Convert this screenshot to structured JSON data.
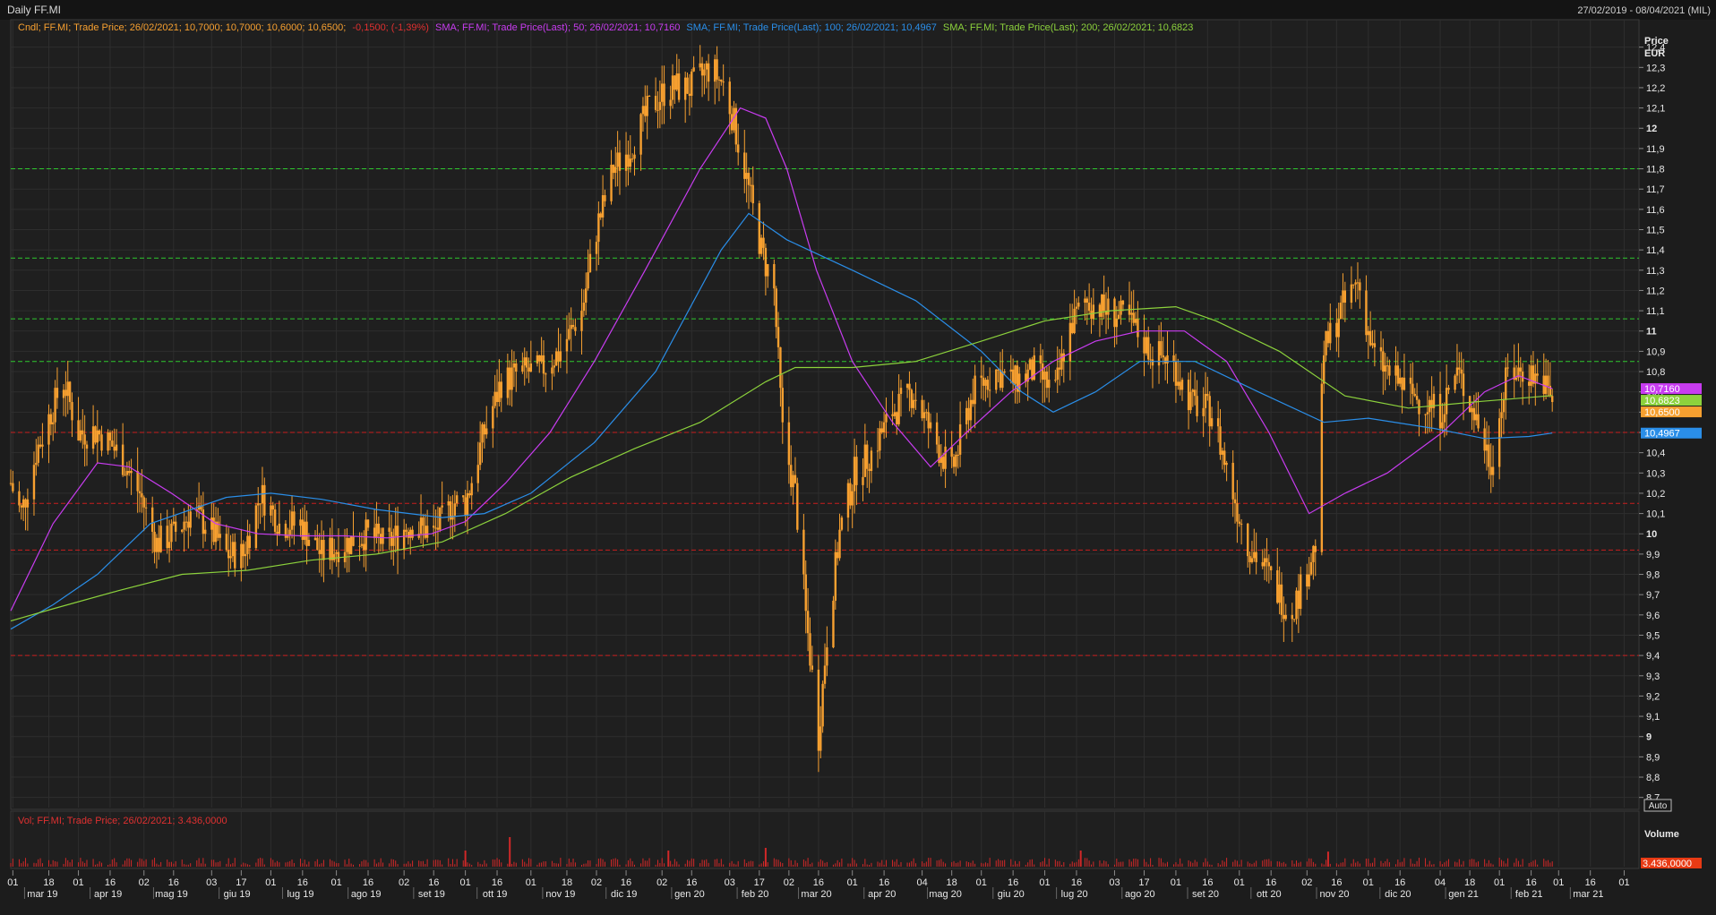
{
  "window": {
    "title": "Daily FF.MI",
    "date_range": "27/02/2019 - 08/04/2021 (MIL)"
  },
  "legend": {
    "candle": "Cndl; FF.MI; Trade Price; 26/02/2021; 10,7000; 10,7000; 10,6000; 10,6500;",
    "candle_change": "-0,1500; (-1,39%)",
    "sma50": "SMA; FF.MI; Trade Price(Last);  50;  26/02/2021; 10,7160",
    "sma100": "SMA; FF.MI; Trade Price(Last);  100;  26/02/2021; 10,4967",
    "sma200": "SMA; FF.MI; Trade Price(Last);  200;  26/02/2021; 10,6823"
  },
  "axis": {
    "price_title": "Price",
    "price_unit": "EUR",
    "auto_label": "Auto",
    "volume_title": "Volume"
  },
  "volume_legend": "Vol; FF.MI; Trade Price;  26/02/2021; 3.436,0000",
  "colors": {
    "background": "#1c1c1c",
    "candle": "#f7a030",
    "sma50": "#c83cf0",
    "sma100": "#2a8ee8",
    "sma200": "#8cd23c",
    "green_levels": "#2ec82e",
    "red_levels": "#c81e1e",
    "volume": "#d22828",
    "axis_text": "#cfcfcf"
  },
  "chart_data": {
    "type": "candlestick",
    "y_range": [
      8.65,
      12.5
    ],
    "y_ticks": [
      "8,7",
      "8,8",
      "8,9",
      "9",
      "9,1",
      "9,2",
      "9,3",
      "9,4",
      "9,5",
      "9,6",
      "9,7",
      "9,8",
      "9,9",
      "10",
      "10,1",
      "10,2",
      "10,3",
      "10,4",
      "10,5",
      "10,6",
      "10,7",
      "10,8",
      "10,9",
      "11",
      "11,1",
      "11,2",
      "11,3",
      "11,4",
      "11,5",
      "11,6",
      "11,7",
      "11,8",
      "11,9",
      "12",
      "12,1",
      "12,2",
      "12,3",
      "12,4"
    ],
    "major_ticks": [
      "9",
      "10",
      "11",
      "12"
    ],
    "x_dates": [
      "2019-03-01",
      "2019-03-18",
      "2019-04-01",
      "2019-04-16",
      "2019-05-02",
      "2019-05-16",
      "2019-06-03",
      "2019-06-17",
      "2019-07-01",
      "2019-07-16",
      "2019-08-01",
      "2019-08-16",
      "2019-09-02",
      "2019-09-16",
      "2019-10-01",
      "2019-10-16",
      "2019-11-01",
      "2019-11-18",
      "2019-12-02",
      "2019-12-16",
      "2020-01-02",
      "2020-01-16",
      "2020-02-03",
      "2020-02-17",
      "2020-03-02",
      "2020-03-16",
      "2020-04-01",
      "2020-04-16",
      "2020-05-04",
      "2020-05-18",
      "2020-06-01",
      "2020-06-16",
      "2020-07-01",
      "2020-07-16",
      "2020-08-03",
      "2020-08-17",
      "2020-09-01",
      "2020-09-16",
      "2020-10-01",
      "2020-10-16",
      "2020-11-02",
      "2020-11-16",
      "2020-12-01",
      "2020-12-16",
      "2021-01-04",
      "2021-01-18",
      "2021-02-01",
      "2021-02-16",
      "2021-03-01",
      "2021-03-16",
      "2021-04-01"
    ],
    "x_tick_labels": [
      "01",
      "18",
      "01",
      "16",
      "02",
      "16",
      "03",
      "17",
      "01",
      "16",
      "01",
      "16",
      "02",
      "16",
      "01",
      "16",
      "01",
      "18",
      "02",
      "16",
      "02",
      "16",
      "03",
      "17",
      "02",
      "16",
      "01",
      "16",
      "04",
      "18",
      "01",
      "16",
      "01",
      "16",
      "03",
      "17",
      "01",
      "16",
      "01",
      "16",
      "02",
      "16",
      "01",
      "16",
      "04",
      "18",
      "01",
      "16",
      "01",
      "16",
      "01"
    ],
    "month_labels": [
      {
        "label": "mar 19",
        "date": "2019-03-15"
      },
      {
        "label": "apr 19",
        "date": "2019-04-15"
      },
      {
        "label": "mag 19",
        "date": "2019-05-15"
      },
      {
        "label": "giu 19",
        "date": "2019-06-15"
      },
      {
        "label": "lug 19",
        "date": "2019-07-15"
      },
      {
        "label": "ago 19",
        "date": "2019-08-15"
      },
      {
        "label": "set 19",
        "date": "2019-09-15"
      },
      {
        "label": "ott 19",
        "date": "2019-10-15"
      },
      {
        "label": "nov 19",
        "date": "2019-11-15"
      },
      {
        "label": "dic 19",
        "date": "2019-12-15"
      },
      {
        "label": "gen 20",
        "date": "2020-01-15"
      },
      {
        "label": "feb 20",
        "date": "2020-02-15"
      },
      {
        "label": "mar 20",
        "date": "2020-03-15"
      },
      {
        "label": "apr 20",
        "date": "2020-04-15"
      },
      {
        "label": "mag 20",
        "date": "2020-05-15"
      },
      {
        "label": "giu 20",
        "date": "2020-06-15"
      },
      {
        "label": "lug 20",
        "date": "2020-07-15"
      },
      {
        "label": "ago 20",
        "date": "2020-08-15"
      },
      {
        "label": "set 20",
        "date": "2020-09-15"
      },
      {
        "label": "ott 20",
        "date": "2020-10-15"
      },
      {
        "label": "nov 20",
        "date": "2020-11-15"
      },
      {
        "label": "dic 20",
        "date": "2020-12-15"
      },
      {
        "label": "gen 21",
        "date": "2021-01-15"
      },
      {
        "label": "feb 21",
        "date": "2021-02-15"
      },
      {
        "label": "mar 21",
        "date": "2021-03-15"
      }
    ],
    "x_range": [
      "2019-02-28",
      "2021-04-08"
    ],
    "green_levels": [
      11.8,
      11.36,
      11.06,
      10.85
    ],
    "red_levels": [
      10.5,
      10.15,
      9.92,
      9.4
    ],
    "close_series": [
      [
        "2019-02-28",
        10.25
      ],
      [
        "2019-03-05",
        10.1
      ],
      [
        "2019-03-12",
        10.4
      ],
      [
        "2019-03-19",
        10.6
      ],
      [
        "2019-03-25",
        10.75
      ],
      [
        "2019-04-01",
        10.5
      ],
      [
        "2019-04-10",
        10.5
      ],
      [
        "2019-04-20",
        10.4
      ],
      [
        "2019-04-30",
        10.2
      ],
      [
        "2019-05-08",
        9.95
      ],
      [
        "2019-05-16",
        10.0
      ],
      [
        "2019-05-24",
        10.1
      ],
      [
        "2019-06-01",
        10.05
      ],
      [
        "2019-06-10",
        9.9
      ],
      [
        "2019-06-18",
        9.9
      ],
      [
        "2019-06-26",
        10.2
      ],
      [
        "2019-07-05",
        10.05
      ],
      [
        "2019-07-15",
        10.05
      ],
      [
        "2019-07-25",
        9.9
      ],
      [
        "2019-08-05",
        9.95
      ],
      [
        "2019-08-15",
        10.0
      ],
      [
        "2019-08-25",
        9.95
      ],
      [
        "2019-09-05",
        10.05
      ],
      [
        "2019-09-16",
        10.0
      ],
      [
        "2019-09-25",
        10.15
      ],
      [
        "2019-10-01",
        10.15
      ],
      [
        "2019-10-10",
        10.5
      ],
      [
        "2019-10-18",
        10.75
      ],
      [
        "2019-10-28",
        10.8
      ],
      [
        "2019-11-05",
        10.8
      ],
      [
        "2019-11-15",
        10.9
      ],
      [
        "2019-11-25",
        11.1
      ],
      [
        "2019-12-02",
        11.5
      ],
      [
        "2019-12-10",
        11.8
      ],
      [
        "2019-12-18",
        11.9
      ],
      [
        "2019-12-27",
        12.1
      ],
      [
        "2020-01-05",
        12.2
      ],
      [
        "2020-01-15",
        12.2
      ],
      [
        "2020-01-25",
        12.3
      ],
      [
        "2020-02-01",
        12.2
      ],
      [
        "2020-02-10",
        11.8
      ],
      [
        "2020-02-18",
        11.4
      ],
      [
        "2020-02-24",
        11.2
      ],
      [
        "2020-02-28",
        10.5
      ],
      [
        "2020-03-05",
        10.2
      ],
      [
        "2020-03-10",
        9.6
      ],
      [
        "2020-03-16",
        9.0
      ],
      [
        "2020-03-20",
        9.5
      ],
      [
        "2020-03-26",
        10.0
      ],
      [
        "2020-04-02",
        10.3
      ],
      [
        "2020-04-10",
        10.4
      ],
      [
        "2020-04-20",
        10.6
      ],
      [
        "2020-04-30",
        10.7
      ],
      [
        "2020-05-08",
        10.5
      ],
      [
        "2020-05-18",
        10.3
      ],
      [
        "2020-05-28",
        10.7
      ],
      [
        "2020-06-08",
        10.8
      ],
      [
        "2020-06-16",
        10.75
      ],
      [
        "2020-06-26",
        10.8
      ],
      [
        "2020-07-06",
        10.7
      ],
      [
        "2020-07-12",
        11.0
      ],
      [
        "2020-07-20",
        11.15
      ],
      [
        "2020-07-30",
        11.1
      ],
      [
        "2020-08-10",
        11.05
      ],
      [
        "2020-08-20",
        10.9
      ],
      [
        "2020-08-30",
        10.85
      ],
      [
        "2020-09-08",
        10.65
      ],
      [
        "2020-09-18",
        10.6
      ],
      [
        "2020-09-28",
        10.2
      ],
      [
        "2020-10-05",
        9.95
      ],
      [
        "2020-10-15",
        9.8
      ],
      [
        "2020-10-25",
        9.6
      ],
      [
        "2020-10-31",
        9.75
      ],
      [
        "2020-11-06",
        9.95
      ],
      [
        "2020-11-10",
        10.9
      ],
      [
        "2020-11-18",
        11.1
      ],
      [
        "2020-11-26",
        11.25
      ],
      [
        "2020-12-03",
        10.9
      ],
      [
        "2020-12-10",
        10.8
      ],
      [
        "2020-12-20",
        10.7
      ],
      [
        "2021-01-04",
        10.6
      ],
      [
        "2021-01-12",
        10.8
      ],
      [
        "2021-01-20",
        10.6
      ],
      [
        "2021-01-28",
        10.35
      ],
      [
        "2021-02-05",
        10.8
      ],
      [
        "2021-02-15",
        10.8
      ],
      [
        "2021-02-22",
        10.75
      ],
      [
        "2021-02-26",
        10.65
      ]
    ],
    "series": [
      {
        "name": "SMA 50",
        "last": 10.716,
        "label": "10,7160",
        "points": [
          [
            "2019-02-28",
            9.62
          ],
          [
            "2019-03-20",
            10.05
          ],
          [
            "2019-04-10",
            10.35
          ],
          [
            "2019-04-25",
            10.33
          ],
          [
            "2019-05-15",
            10.2
          ],
          [
            "2019-06-05",
            10.05
          ],
          [
            "2019-06-25",
            10.0
          ],
          [
            "2019-07-15",
            9.99
          ],
          [
            "2019-08-05",
            9.99
          ],
          [
            "2019-08-25",
            9.98
          ],
          [
            "2019-09-15",
            10.0
          ],
          [
            "2019-10-01",
            10.06
          ],
          [
            "2019-10-20",
            10.25
          ],
          [
            "2019-11-10",
            10.5
          ],
          [
            "2019-12-01",
            10.85
          ],
          [
            "2019-12-25",
            11.3
          ],
          [
            "2020-01-20",
            11.8
          ],
          [
            "2020-02-08",
            12.1
          ],
          [
            "2020-02-20",
            12.05
          ],
          [
            "2020-03-01",
            11.8
          ],
          [
            "2020-03-15",
            11.3
          ],
          [
            "2020-04-01",
            10.85
          ],
          [
            "2020-04-20",
            10.55
          ],
          [
            "2020-05-08",
            10.33
          ],
          [
            "2020-05-25",
            10.5
          ],
          [
            "2020-06-15",
            10.7
          ],
          [
            "2020-07-05",
            10.85
          ],
          [
            "2020-07-25",
            10.95
          ],
          [
            "2020-08-15",
            11.0
          ],
          [
            "2020-09-05",
            11.0
          ],
          [
            "2020-09-25",
            10.85
          ],
          [
            "2020-10-15",
            10.5
          ],
          [
            "2020-11-03",
            10.1
          ],
          [
            "2020-11-20",
            10.2
          ],
          [
            "2020-12-10",
            10.3
          ],
          [
            "2021-01-05",
            10.5
          ],
          [
            "2021-01-25",
            10.7
          ],
          [
            "2021-02-10",
            10.78
          ],
          [
            "2021-02-26",
            10.716
          ]
        ]
      },
      {
        "name": "SMA 100",
        "last": 10.4967,
        "label": "10,4967",
        "points": [
          [
            "2019-02-28",
            9.53
          ],
          [
            "2019-03-20",
            9.65
          ],
          [
            "2019-04-10",
            9.8
          ],
          [
            "2019-05-05",
            10.05
          ],
          [
            "2019-06-10",
            10.18
          ],
          [
            "2019-07-01",
            10.2
          ],
          [
            "2019-07-25",
            10.17
          ],
          [
            "2019-08-20",
            10.12
          ],
          [
            "2019-09-20",
            10.08
          ],
          [
            "2019-10-10",
            10.1
          ],
          [
            "2019-11-01",
            10.2
          ],
          [
            "2019-12-01",
            10.45
          ],
          [
            "2019-12-30",
            10.8
          ],
          [
            "2020-01-30",
            11.4
          ],
          [
            "2020-02-12",
            11.58
          ],
          [
            "2020-03-01",
            11.45
          ],
          [
            "2020-04-01",
            11.3
          ],
          [
            "2020-05-01",
            11.15
          ],
          [
            "2020-06-01",
            10.9
          ],
          [
            "2020-06-20",
            10.7
          ],
          [
            "2020-07-05",
            10.6
          ],
          [
            "2020-07-25",
            10.7
          ],
          [
            "2020-08-15",
            10.85
          ],
          [
            "2020-09-10",
            10.85
          ],
          [
            "2020-10-10",
            10.7
          ],
          [
            "2020-11-10",
            10.55
          ],
          [
            "2020-12-01",
            10.57
          ],
          [
            "2021-01-01",
            10.52
          ],
          [
            "2021-01-25",
            10.47
          ],
          [
            "2021-02-15",
            10.48
          ],
          [
            "2021-02-26",
            10.497
          ]
        ]
      },
      {
        "name": "SMA 200",
        "last": 10.6823,
        "label": "10,6823",
        "points": [
          [
            "2019-02-28",
            9.57
          ],
          [
            "2019-03-20",
            9.63
          ],
          [
            "2019-04-20",
            9.72
          ],
          [
            "2019-05-20",
            9.8
          ],
          [
            "2019-06-20",
            9.82
          ],
          [
            "2019-07-20",
            9.87
          ],
          [
            "2019-08-20",
            9.9
          ],
          [
            "2019-09-20",
            9.96
          ],
          [
            "2019-10-20",
            10.1
          ],
          [
            "2019-11-20",
            10.28
          ],
          [
            "2019-12-20",
            10.42
          ],
          [
            "2020-01-20",
            10.55
          ],
          [
            "2020-02-20",
            10.75
          ],
          [
            "2020-03-05",
            10.82
          ],
          [
            "2020-04-01",
            10.82
          ],
          [
            "2020-05-01",
            10.85
          ],
          [
            "2020-06-01",
            10.95
          ],
          [
            "2020-07-01",
            11.05
          ],
          [
            "2020-08-01",
            11.1
          ],
          [
            "2020-09-01",
            11.12
          ],
          [
            "2020-09-20",
            11.05
          ],
          [
            "2020-10-20",
            10.9
          ],
          [
            "2020-11-20",
            10.68
          ],
          [
            "2020-12-20",
            10.62
          ],
          [
            "2021-01-20",
            10.65
          ],
          [
            "2021-02-26",
            10.682
          ]
        ]
      }
    ],
    "last_close_label": "10,6500",
    "last_close": 10.65,
    "volume": {
      "last_label": "3.436,0000",
      "spikes": [
        [
          "2019-10-22",
          0.55
        ],
        [
          "2019-10-01",
          0.3
        ],
        [
          "2020-01-05",
          0.3
        ],
        [
          "2020-02-20",
          0.35
        ],
        [
          "2020-07-18",
          0.3
        ],
        [
          "2020-11-12",
          0.28
        ]
      ]
    }
  }
}
